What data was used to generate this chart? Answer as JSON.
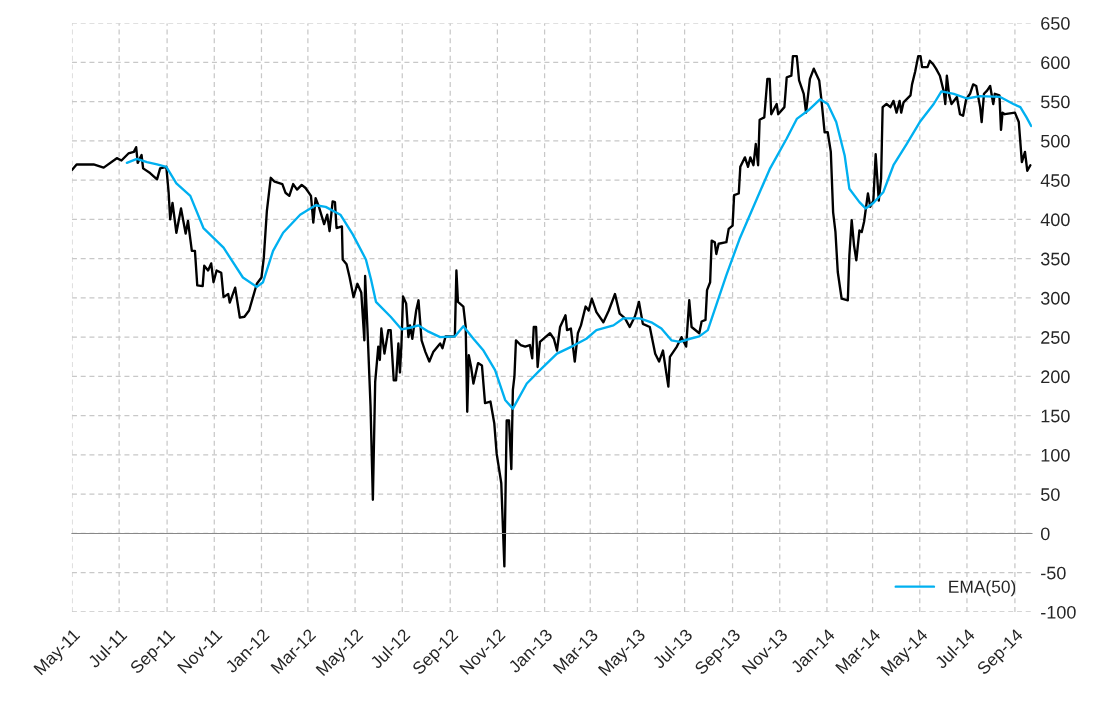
{
  "chart_data": {
    "type": "line",
    "xlim": [
      "2011-05-01",
      "2014-09-23"
    ],
    "xticks": [
      {
        "value": "2011-05-01",
        "label": "May-11"
      },
      {
        "value": "2011-07-01",
        "label": "Jul-11"
      },
      {
        "value": "2011-09-01",
        "label": "Sep-11"
      },
      {
        "value": "2011-11-01",
        "label": "Nov-11"
      },
      {
        "value": "2012-01-01",
        "label": "Jan-12"
      },
      {
        "value": "2012-03-01",
        "label": "Mar-12"
      },
      {
        "value": "2012-05-01",
        "label": "May-12"
      },
      {
        "value": "2012-07-01",
        "label": "Jul-12"
      },
      {
        "value": "2012-09-01",
        "label": "Sep-12"
      },
      {
        "value": "2012-11-01",
        "label": "Nov-12"
      },
      {
        "value": "2013-01-01",
        "label": "Jan-13"
      },
      {
        "value": "2013-03-01",
        "label": "Mar-13"
      },
      {
        "value": "2013-05-01",
        "label": "May-13"
      },
      {
        "value": "2013-07-01",
        "label": "Jul-13"
      },
      {
        "value": "2013-09-01",
        "label": "Sep-13"
      },
      {
        "value": "2013-11-01",
        "label": "Nov-13"
      },
      {
        "value": "2014-01-01",
        "label": "Jan-14"
      },
      {
        "value": "2014-03-01",
        "label": "Mar-14"
      },
      {
        "value": "2014-05-01",
        "label": "May-14"
      },
      {
        "value": "2014-07-01",
        "label": "Jul-14"
      },
      {
        "value": "2014-09-01",
        "label": "Sep-14"
      }
    ],
    "ylim": [
      -100,
      650
    ],
    "yticks": [
      -100,
      -50,
      0,
      50,
      100,
      150,
      200,
      250,
      300,
      350,
      400,
      450,
      500,
      550,
      600,
      650
    ],
    "grid": true,
    "legend": "bottom right",
    "series": [
      {
        "color": "#000000",
        "x": [
          "2011-05-01",
          "2011-05-07",
          "2011-05-29",
          "2011-06-11",
          "2011-06-28",
          "2011-07-04",
          "2011-07-13",
          "2011-07-20",
          "2011-07-23",
          "2011-07-25",
          "2011-07-30",
          "2011-08-01",
          "2011-08-10",
          "2011-08-19",
          "2011-08-23",
          "2011-08-31",
          "2011-09-03",
          "2011-09-05",
          "2011-09-08",
          "2011-09-13",
          "2011-09-19",
          "2011-09-25",
          "2011-09-28",
          "2011-10-03",
          "2011-10-07",
          "2011-10-10",
          "2011-10-17",
          "2011-10-19",
          "2011-10-24",
          "2011-10-28",
          "2011-10-31",
          "2011-11-04",
          "2011-11-10",
          "2011-11-13",
          "2011-11-19",
          "2011-11-21",
          "2011-11-28",
          "2011-12-04",
          "2011-12-10",
          "2011-12-16",
          "2011-12-21",
          "2011-12-26",
          "2012-01-01",
          "2012-01-04",
          "2012-01-08",
          "2012-01-13",
          "2012-01-18",
          "2012-01-28",
          "2012-02-01",
          "2012-02-06",
          "2012-02-11",
          "2012-02-16",
          "2012-02-22",
          "2012-02-27",
          "2012-03-05",
          "2012-03-08",
          "2012-03-11",
          "2012-03-15",
          "2012-03-22",
          "2012-03-26",
          "2012-03-29",
          "2012-04-02",
          "2012-04-05",
          "2012-04-07",
          "2012-04-14",
          "2012-04-15",
          "2012-04-20",
          "2012-04-24",
          "2012-04-29",
          "2012-05-04",
          "2012-05-09",
          "2012-05-13",
          "2012-05-14",
          "2012-05-17",
          "2012-05-21",
          "2012-05-24",
          "2012-05-27",
          "2012-05-31",
          "2012-06-02",
          "2012-06-04",
          "2012-06-08",
          "2012-06-13",
          "2012-06-16",
          "2012-06-20",
          "2012-06-23",
          "2012-06-26",
          "2012-06-28",
          "2012-06-30",
          "2012-07-02",
          "2012-07-06",
          "2012-07-09",
          "2012-07-11",
          "2012-07-14",
          "2012-07-19",
          "2012-07-22",
          "2012-07-26",
          "2012-07-31",
          "2012-08-05",
          "2012-08-10",
          "2012-08-19",
          "2012-08-22",
          "2012-08-26",
          "2012-09-07",
          "2012-09-09",
          "2012-09-11",
          "2012-09-18",
          "2012-09-21",
          "2012-09-23",
          "2012-09-25",
          "2012-09-28",
          "2012-10-01",
          "2012-10-07",
          "2012-10-12",
          "2012-10-16",
          "2012-10-23",
          "2012-10-28",
          "2012-10-31",
          "2012-11-06",
          "2012-11-10",
          "2012-11-13",
          "2012-11-16",
          "2012-11-19",
          "2012-11-21",
          "2012-11-23",
          "2012-11-25",
          "2012-12-01",
          "2012-12-07",
          "2012-12-13",
          "2012-12-16",
          "2012-12-18",
          "2012-12-21",
          "2012-12-23",
          "2012-12-26",
          "2013-01-02",
          "2013-01-08",
          "2013-01-13",
          "2013-01-17",
          "2013-01-21",
          "2013-01-28",
          "2013-01-30",
          "2013-02-04",
          "2013-02-09",
          "2013-02-13",
          "2013-02-17",
          "2013-02-23",
          "2013-02-27",
          "2013-03-03",
          "2013-03-09",
          "2013-03-18",
          "2013-03-25",
          "2013-04-02",
          "2013-04-08",
          "2013-04-15",
          "2013-04-21",
          "2013-04-28",
          "2013-05-03",
          "2013-05-08",
          "2013-05-17",
          "2013-05-24",
          "2013-05-29",
          "2013-06-03",
          "2013-06-10",
          "2013-06-12",
          "2013-06-21",
          "2013-06-27",
          "2013-07-03",
          "2013-07-07",
          "2013-07-10",
          "2013-07-20",
          "2013-07-23",
          "2013-07-28",
          "2013-07-30",
          "2013-08-03",
          "2013-08-05",
          "2013-08-09",
          "2013-08-11",
          "2013-08-14",
          "2013-08-24",
          "2013-08-27",
          "2013-09-01",
          "2013-09-03",
          "2013-09-09",
          "2013-09-11",
          "2013-09-17",
          "2013-09-21",
          "2013-09-24",
          "2013-09-28",
          "2013-10-01",
          "2013-10-04",
          "2013-10-06",
          "2013-10-12",
          "2013-10-16",
          "2013-10-19",
          "2013-10-21",
          "2013-10-28",
          "2013-10-30",
          "2013-11-07",
          "2013-11-10",
          "2013-11-16",
          "2013-11-18",
          "2013-11-23",
          "2013-11-26",
          "2013-12-02",
          "2013-12-05",
          "2013-12-10",
          "2013-12-15",
          "2013-12-22",
          "2013-12-25",
          "2013-12-29",
          "2014-01-02",
          "2014-01-06",
          "2014-01-09",
          "2014-01-12",
          "2014-01-15",
          "2014-01-20",
          "2014-01-28",
          "2014-01-30",
          "2014-02-02",
          "2014-02-05",
          "2014-02-08",
          "2014-02-12",
          "2014-02-15",
          "2014-02-18",
          "2014-02-23",
          "2014-02-26",
          "2014-03-02",
          "2014-03-05",
          "2014-03-09",
          "2014-03-12",
          "2014-03-14",
          "2014-03-19",
          "2014-03-24",
          "2014-03-28",
          "2014-04-01",
          "2014-04-05",
          "2014-04-07",
          "2014-04-10",
          "2014-04-19",
          "2014-04-21",
          "2014-04-25",
          "2014-04-29",
          "2014-05-02",
          "2014-05-04",
          "2014-05-11",
          "2014-05-14",
          "2014-05-18",
          "2014-05-22",
          "2014-05-27",
          "2014-06-01",
          "2014-06-03",
          "2014-06-05",
          "2014-06-08",
          "2014-06-11",
          "2014-06-18",
          "2014-06-22",
          "2014-06-26",
          "2014-06-30",
          "2014-07-05",
          "2014-07-09",
          "2014-07-13",
          "2014-07-18",
          "2014-07-20",
          "2014-07-23",
          "2014-07-27",
          "2014-07-31",
          "2014-08-04",
          "2014-08-06",
          "2014-08-12",
          "2014-08-14",
          "2014-08-16",
          "2014-08-19",
          "2014-09-01",
          "2014-09-06",
          "2014-09-10",
          "2014-09-14",
          "2014-09-17",
          "2014-09-21"
        ],
        "values": [
          463,
          470,
          470,
          466,
          478,
          475,
          484,
          486,
          492,
          472,
          482,
          465,
          459,
          451,
          465,
          467,
          434,
          400,
          421,
          383,
          414,
          382,
          398,
          360,
          360,
          316,
          315,
          341,
          335,
          344,
          320,
          335,
          332,
          301,
          305,
          294,
          313,
          275,
          276,
          284,
          301,
          318,
          326,
          351,
          411,
          453,
          448,
          445,
          434,
          430,
          445,
          438,
          444,
          440,
          430,
          396,
          427,
          417,
          394,
          406,
          385,
          423,
          422,
          389,
          391,
          349,
          343,
          326,
          301,
          318,
          307,
          246,
          328,
          261,
          162,
          43,
          193,
          238,
          221,
          261,
          229,
          259,
          259,
          195,
          195,
          242,
          205,
          242,
          302,
          293,
          250,
          265,
          248,
          284,
          297,
          246,
          231,
          219,
          231,
          242,
          236,
          251,
          251,
          335,
          295,
          289,
          263,
          155,
          227,
          212,
          191,
          217,
          214,
          166,
          168,
          140,
          102,
          64,
          -42,
          144,
          144,
          82,
          183,
          200,
          246,
          240,
          238,
          240,
          223,
          263,
          263,
          212,
          244,
          250,
          255,
          248,
          233,
          263,
          278,
          259,
          261,
          219,
          255,
          265,
          289,
          284,
          299,
          282,
          269,
          284,
          305,
          280,
          274,
          263,
          277,
          295,
          267,
          263,
          229,
          219,
          233,
          187,
          225,
          238,
          250,
          238,
          297,
          263,
          255,
          270,
          272,
          310,
          320,
          373,
          371,
          356,
          369,
          371,
          388,
          392,
          431,
          433,
          467,
          479,
          467,
          479,
          469,
          496,
          469,
          527,
          530,
          579,
          579,
          534,
          547,
          534,
          543,
          581,
          583,
          608,
          608,
          577,
          560,
          536,
          579,
          592,
          577,
          551,
          511,
          511,
          486,
          409,
          384,
          333,
          299,
          297,
          354,
          399,
          367,
          348,
          386,
          384,
          397,
          433,
          416,
          424,
          483,
          424,
          452,
          543,
          547,
          543,
          551,
          536,
          551,
          536,
          549,
          558,
          572,
          588,
          608,
          608,
          594,
          594,
          602,
          598,
          592,
          583,
          563,
          547,
          583,
          558,
          547,
          556,
          534,
          532,
          553,
          560,
          572,
          570,
          543,
          524,
          560,
          564,
          570,
          547,
          560,
          558,
          514,
          536,
          534,
          536,
          524,
          473,
          486,
          462,
          469
        ]
      },
      {
        "name": "EMA(50)",
        "color": "#00b0f0",
        "x": [
          "2011-07-11",
          "2011-07-24",
          "2011-08-06",
          "2011-08-19",
          "2011-08-31",
          "2011-09-13",
          "2011-10-01",
          "2011-10-18",
          "2011-11-13",
          "2011-12-08",
          "2011-12-26",
          "2012-01-03",
          "2012-01-16",
          "2012-01-29",
          "2012-02-20",
          "2012-03-11",
          "2012-03-24",
          "2012-04-12",
          "2012-04-28",
          "2012-05-15",
          "2012-05-22",
          "2012-05-28",
          "2012-06-16",
          "2012-06-30",
          "2012-07-11",
          "2012-07-22",
          "2012-08-04",
          "2012-08-19",
          "2012-09-07",
          "2012-09-18",
          "2012-10-01",
          "2012-10-14",
          "2012-10-29",
          "2012-11-11",
          "2012-11-21",
          "2012-12-09",
          "2012-12-26",
          "2013-01-17",
          "2013-02-07",
          "2013-02-24",
          "2013-03-09",
          "2013-03-31",
          "2013-04-13",
          "2013-05-04",
          "2013-05-19",
          "2013-06-01",
          "2013-06-14",
          "2013-06-25",
          "2013-07-08",
          "2013-07-20",
          "2013-07-31",
          "2013-08-11",
          "2013-08-24",
          "2013-09-10",
          "2013-09-27",
          "2013-10-19",
          "2013-11-10",
          "2013-11-23",
          "2013-12-08",
          "2013-12-23",
          "2014-01-02",
          "2014-01-13",
          "2014-01-24",
          "2014-01-30",
          "2014-02-12",
          "2014-02-20",
          "2014-03-02",
          "2014-03-15",
          "2014-03-28",
          "2014-04-14",
          "2014-05-01",
          "2014-05-19",
          "2014-05-29",
          "2014-06-14",
          "2014-07-01",
          "2014-07-18",
          "2014-08-13",
          "2014-08-30",
          "2014-09-08",
          "2014-09-16",
          "2014-09-22"
        ],
        "values": [
          472,
          477,
          473,
          470,
          467,
          446,
          430,
          389,
          364,
          326,
          314,
          320,
          360,
          383,
          406,
          418,
          416,
          406,
          381,
          349,
          322,
          295,
          276,
          260,
          262,
          265,
          257,
          250,
          251,
          264,
          248,
          233,
          208,
          170,
          159,
          191,
          208,
          229,
          239,
          248,
          259,
          265,
          274,
          274,
          269,
          261,
          246,
          244,
          248,
          251,
          259,
          291,
          329,
          375,
          414,
          464,
          503,
          528,
          539,
          553,
          547,
          524,
          481,
          439,
          422,
          414,
          421,
          435,
          469,
          496,
          524,
          547,
          563,
          560,
          554,
          557,
          556,
          547,
          543,
          530,
          519
        ]
      }
    ]
  }
}
